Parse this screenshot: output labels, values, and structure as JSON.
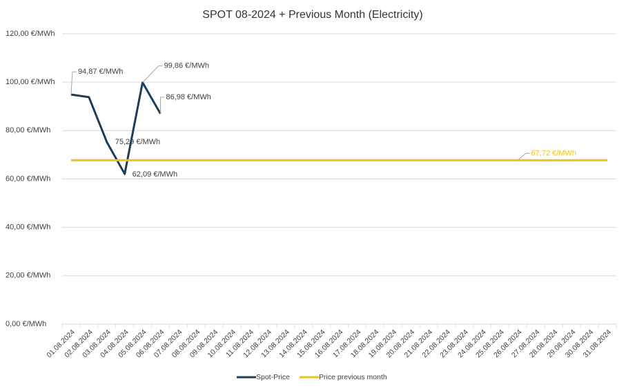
{
  "chart_data": {
    "type": "line",
    "title": "SPOT 08-2024 + Previous Month (Electricity)",
    "categories": [
      "01.08.2024",
      "02.08.2024",
      "03.08.2024",
      "04.08.2024",
      "05.08.2024",
      "06.08.2024",
      "07.08.2024",
      "08.08.2024",
      "09.08.2024",
      "10.08.2024",
      "11.08.2024",
      "12.08.2024",
      "13.08.2024",
      "14.08.2024",
      "15.08.2024",
      "16.08.2024",
      "17.08.2024",
      "18.08.2024",
      "19.08.2024",
      "20.08.2024",
      "21.08.2024",
      "22.08.2024",
      "23.08.2024",
      "24.08.2024",
      "25.08.2024",
      "26.08.2024",
      "27.08.2024",
      "28.08.2024",
      "29.08.2024",
      "30.08.2024",
      "31.08.2024"
    ],
    "series": [
      {
        "name": "Spot-Price",
        "color": "#1b3d5a",
        "values": [
          94.87,
          93.8,
          75.29,
          62.09,
          99.86,
          86.98,
          null,
          null,
          null,
          null,
          null,
          null,
          null,
          null,
          null,
          null,
          null,
          null,
          null,
          null,
          null,
          null,
          null,
          null,
          null,
          null,
          null,
          null,
          null,
          null,
          null
        ],
        "value_labels": [
          "94,87 €/MWh",
          null,
          "75,29 €/MWh",
          "62,09 €/MWh",
          "99,86 €/MWh",
          "86,98 €/MWh",
          null,
          null,
          null,
          null,
          null,
          null,
          null,
          null,
          null,
          null,
          null,
          null,
          null,
          null,
          null,
          null,
          null,
          null,
          null,
          null,
          null,
          null,
          null,
          null,
          null
        ]
      },
      {
        "name": "Price previous month",
        "color": "#f2c314",
        "values": [
          67.72,
          67.72,
          67.72,
          67.72,
          67.72,
          67.72,
          67.72,
          67.72,
          67.72,
          67.72,
          67.72,
          67.72,
          67.72,
          67.72,
          67.72,
          67.72,
          67.72,
          67.72,
          67.72,
          67.72,
          67.72,
          67.72,
          67.72,
          67.72,
          67.72,
          67.72,
          67.72,
          67.72,
          67.72,
          67.72,
          67.72
        ],
        "value_labels": [
          null,
          null,
          null,
          null,
          null,
          null,
          null,
          null,
          null,
          null,
          null,
          null,
          null,
          null,
          null,
          null,
          null,
          null,
          null,
          null,
          null,
          null,
          null,
          null,
          null,
          "67,72 €/MWh",
          null,
          null,
          null,
          null,
          null
        ]
      }
    ],
    "ylim": [
      0,
      120
    ],
    "yticks": [
      {
        "value": 0,
        "label": "0,00 €/MWh"
      },
      {
        "value": 20,
        "label": "20,00 €/MWh"
      },
      {
        "value": 40,
        "label": "40,00 €/MWh"
      },
      {
        "value": 60,
        "label": "60,00 €/MWh"
      },
      {
        "value": 80,
        "label": "80,00 €/MWh"
      },
      {
        "value": 100,
        "label": "100,00 €/MWh"
      },
      {
        "value": 120,
        "label": "120,00 €/MWh"
      }
    ],
    "grid": true,
    "legend": "bottom"
  }
}
